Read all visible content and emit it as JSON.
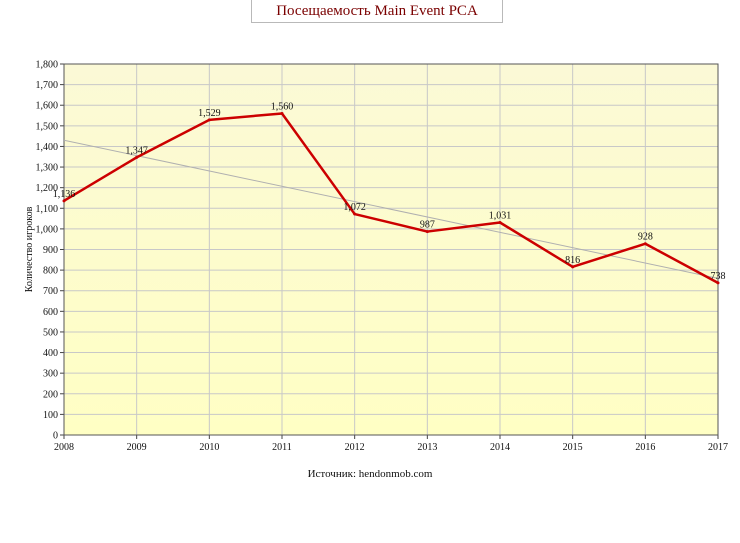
{
  "chart_data": {
    "type": "line",
    "title": "Посещаемость Main Event PCA",
    "ylabel": "Количество игроков",
    "xlabel": "",
    "source_text": "Источник: hendonmob.com",
    "x": [
      "2008",
      "2009",
      "2010",
      "2011",
      "2012",
      "2013",
      "2014",
      "2015",
      "2016",
      "2017"
    ],
    "y_ticks": [
      "0",
      "100",
      "200",
      "300",
      "400",
      "500",
      "600",
      "700",
      "800",
      "900",
      "1,000",
      "1,100",
      "1,200",
      "1,300",
      "1,400",
      "1,500",
      "1,600",
      "1,700",
      "1,800"
    ],
    "ylim": [
      0,
      1800
    ],
    "grid": true,
    "series": [
      {
        "values": [
          1136,
          1347,
          1529,
          1560,
          1072,
          987,
          1031,
          816,
          928,
          738
        ],
        "labels": [
          "1,136",
          "1,347",
          "1,529",
          "1,560",
          "1,072",
          "987",
          "1,031",
          "816",
          "928",
          "738"
        ],
        "color": "#cc0000"
      }
    ],
    "trendline": {
      "start": 1430,
      "end": 760,
      "color": "#b0b0b0"
    },
    "background_gradient": [
      "#fbf9d6",
      "#ffffc4"
    ]
  }
}
